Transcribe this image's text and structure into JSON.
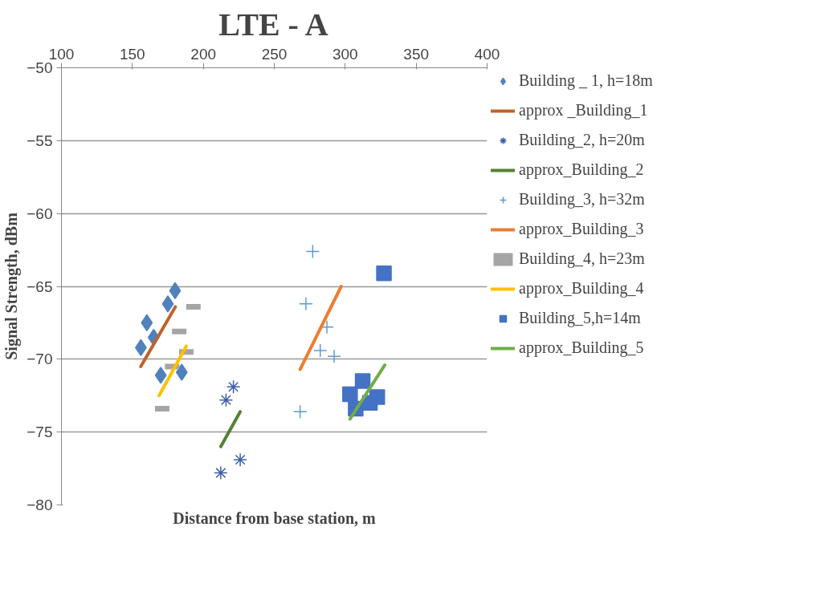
{
  "chart_data": {
    "type": "scatter",
    "title": "LTE - A",
    "xlabel": "Distance from base station, m",
    "ylabel": "Signal Strength, dBm",
    "xlim": [
      100,
      400
    ],
    "xticks": [
      100,
      150,
      200,
      250,
      300,
      350,
      400
    ],
    "ylim": [
      -80,
      -50
    ],
    "yticks": [
      -80,
      -75,
      -70,
      -65,
      -60,
      -55,
      -50
    ],
    "grid": "y",
    "legend": "right",
    "series": [
      {
        "name": "Building _ 1, h=18m",
        "type": "scatter",
        "marker": "diamond",
        "color": "#4f81bd",
        "x": [
          180.1,
          175,
          160.2,
          165,
          156,
          170,
          184.8
        ],
        "values": [
          -65.3,
          -66.2,
          -67.5,
          -68.5,
          -69.2,
          -71.1,
          -70.9
        ]
      },
      {
        "name": "approx _Building_1",
        "type": "line",
        "color": "#c0622b",
        "x": [
          155.9,
          180.3
        ],
        "values": [
          -70.5,
          -66.4
        ]
      },
      {
        "name": "Building_2, h=20m",
        "type": "scatter",
        "marker": "cross",
        "color": "#3f5ea8",
        "x": [
          221.2,
          216,
          226,
          212.3
        ],
        "values": [
          -71.9,
          -72.8,
          -76.9,
          -77.8
        ]
      },
      {
        "name": "approx_Building_2",
        "type": "line",
        "color": "#548235",
        "x": [
          212.3,
          226
        ],
        "values": [
          -76.0,
          -73.6
        ]
      },
      {
        "name": "Building_3, h=32m",
        "type": "scatter",
        "marker": "cross",
        "color": "#5b9bd5",
        "x": [
          277.1,
          272.3,
          287.1,
          282.4,
          292.2,
          268.2
        ],
        "values": [
          -62.6,
          -66.2,
          -67.8,
          -69.4,
          -69.8,
          -73.6
        ]
      },
      {
        "name": "approx_Building_3",
        "type": "line",
        "color": "#ed7d31",
        "x": [
          268.2,
          297.2
        ],
        "values": [
          -70.7,
          -65.0
        ]
      },
      {
        "name": "Building_4, h=23m",
        "type": "scatter",
        "color": "#a5a5a5",
        "x": [
          193,
          183,
          188,
          178,
          171
        ],
        "values": [
          -66.4,
          -68.1,
          -69.5,
          -70.5,
          -73.4
        ]
      },
      {
        "name": "approx_Building_4",
        "type": "line",
        "color": "#ffc000",
        "x": [
          168.8,
          188
        ],
        "values": [
          -72.5,
          -69.1
        ]
      },
      {
        "name": "Building_5,h=14m",
        "type": "scatter",
        "marker": "square",
        "color": "#4472c4",
        "x": [
          327.3,
          312.3,
          303.4,
          322.6,
          317.4,
          307.4
        ],
        "values": [
          -64.1,
          -71.5,
          -72.4,
          -72.6,
          -73.0,
          -73.4
        ]
      },
      {
        "name": "approx_Building_5",
        "type": "line",
        "color": "#70ad47",
        "x": [
          303.4,
          327.9
        ],
        "values": [
          -74.1,
          -70.4
        ]
      }
    ]
  }
}
